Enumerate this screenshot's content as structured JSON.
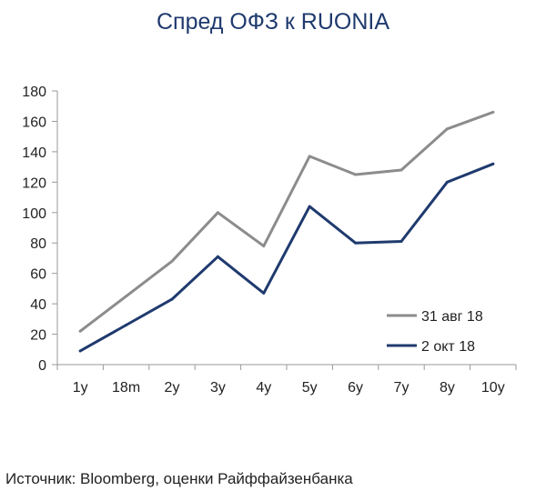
{
  "title": "Спред ОФЗ к RUONIA",
  "source": "Источник: Bloomberg, оценки Райффайзенбанка",
  "chart_data": {
    "type": "line",
    "title": "Спред ОФЗ к RUONIA",
    "categories": [
      "1y",
      "18m",
      "2y",
      "3y",
      "4y",
      "5y",
      "6y",
      "7y",
      "8y",
      "10y"
    ],
    "series": [
      {
        "name": "31 авг 18",
        "color": "#8c8c8c",
        "values": [
          22,
          45,
          68,
          100,
          78,
          137,
          125,
          128,
          155,
          166
        ]
      },
      {
        "name": "2 окт 18",
        "color": "#1f3a6e",
        "values": [
          9,
          26,
          43,
          71,
          47,
          104,
          80,
          81,
          120,
          132
        ]
      }
    ],
    "yticks": [
      0,
      20,
      40,
      60,
      80,
      100,
      120,
      140,
      160,
      180
    ],
    "ylim": [
      0,
      180
    ],
    "xlabel": "",
    "ylabel": "",
    "grid": false,
    "legend_position": "bottom-right"
  }
}
